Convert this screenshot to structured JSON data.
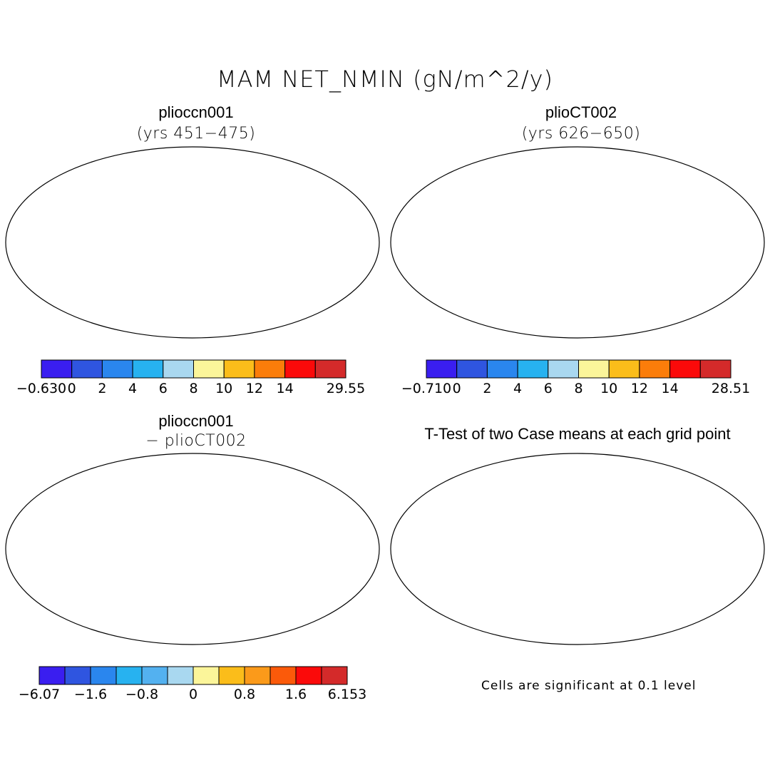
{
  "title": "MAM NET_NMIN (gN/m^2/y)",
  "panels": [
    {
      "name": "plioccn001",
      "subtitle": "(yrs 451−475)"
    },
    {
      "name": "plioCT002",
      "subtitle": "(yrs 626−650)"
    },
    {
      "name": "plioccn001",
      "subtitle": "− plioCT002"
    },
    {
      "name": "T-Test of two Case means at each grid point",
      "subtitle": ""
    }
  ],
  "colorbars": [
    {
      "id": "cb1",
      "colors": [
        "#3a1ef0",
        "#2f55e0",
        "#2a86ee",
        "#27b2f0",
        "#a9d8f0",
        "#fbf59a",
        "#fbbd1a",
        "#fb7d0a",
        "#fb0a0a",
        "#d42a2a"
      ],
      "labels": [
        "−0.630",
        "0",
        "2",
        "4",
        "6",
        "8",
        "10",
        "12",
        "14",
        "",
        "29.55"
      ]
    },
    {
      "id": "cb2",
      "colors": [
        "#3a1ef0",
        "#2f55e0",
        "#2a86ee",
        "#27b2f0",
        "#a9d8f0",
        "#fbf59a",
        "#fbbd1a",
        "#fb7d0a",
        "#fb0a0a",
        "#d42a2a"
      ],
      "labels": [
        "−0.710",
        "0",
        "2",
        "4",
        "6",
        "8",
        "10",
        "12",
        "14",
        "",
        "28.51"
      ]
    },
    {
      "id": "cb3",
      "colors": [
        "#3a1ef0",
        "#2f55e0",
        "#2a86ee",
        "#27b2f0",
        "#53b1f0",
        "#a9d8f0",
        "#fbf59a",
        "#fbbd1a",
        "#fb9a1a",
        "#fb5a0a",
        "#fb0a0a",
        "#d42a2a"
      ],
      "labels": [
        "−6.07",
        "",
        "−1.6",
        "",
        "−0.8",
        "",
        "0",
        "",
        "0.8",
        "",
        "1.6",
        "",
        "6.153"
      ]
    }
  ],
  "note": "Cells are significant at 0.1 level"
}
